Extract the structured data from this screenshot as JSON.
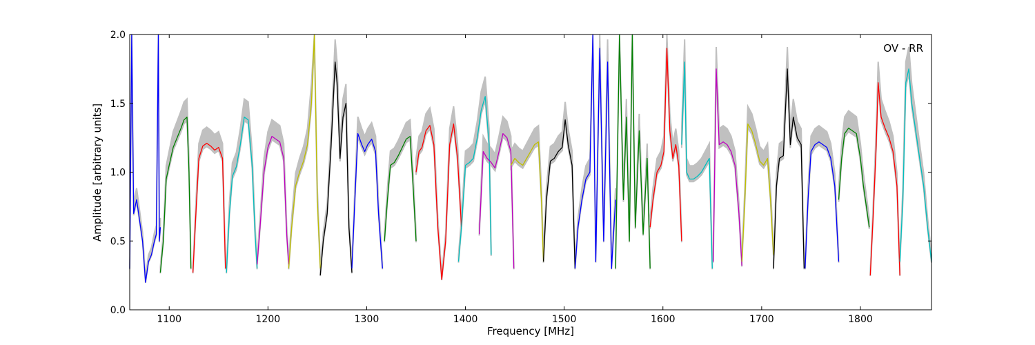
{
  "chart_data": {
    "type": "line",
    "title": "",
    "annotation": "OV - RR",
    "xlabel": "Frequency [MHz]",
    "ylabel": "Amplitude [arbitrary units]",
    "xlim": [
      1060,
      1872
    ],
    "ylim": [
      0.0,
      2.0
    ],
    "xticks": [
      1100,
      1200,
      1300,
      1400,
      1500,
      1600,
      1700,
      1800
    ],
    "yticks": [
      0.0,
      0.5,
      1.0,
      1.5,
      2.0
    ],
    "grid": false,
    "background_color": "#c0c0c0",
    "series": [
      {
        "color": "#0000ff",
        "x": [
          1060,
          1062,
          1064,
          1067,
          1070,
          1073,
          1076,
          1079,
          1082,
          1085,
          1087,
          1089,
          1090,
          1091
        ],
        "y": [
          0.3,
          2.0,
          0.7,
          0.8,
          0.65,
          0.5,
          0.2,
          0.35,
          0.4,
          0.5,
          0.55,
          2.0,
          0.5,
          0.6
        ]
      },
      {
        "color": "#008000",
        "x": [
          1091,
          1094,
          1097,
          1100,
          1104,
          1108,
          1112,
          1115,
          1118,
          1120,
          1122
        ],
        "y": [
          0.27,
          0.5,
          0.95,
          1.05,
          1.18,
          1.25,
          1.32,
          1.38,
          1.4,
          1.0,
          0.3
        ]
      },
      {
        "color": "#ff0000",
        "x": [
          1124,
          1127,
          1130,
          1134,
          1138,
          1142,
          1146,
          1150,
          1154,
          1157
        ],
        "y": [
          0.27,
          0.7,
          1.1,
          1.19,
          1.21,
          1.19,
          1.16,
          1.18,
          1.1,
          0.3
        ]
      },
      {
        "color": "#00bfbf",
        "x": [
          1158,
          1161,
          1164,
          1168,
          1172,
          1176,
          1180,
          1184,
          1187,
          1189
        ],
        "y": [
          0.27,
          0.7,
          0.97,
          1.04,
          1.2,
          1.4,
          1.38,
          1.05,
          0.55,
          0.3
        ]
      },
      {
        "color": "#bf00bf",
        "x": [
          1189,
          1192,
          1196,
          1200,
          1204,
          1208,
          1212,
          1216,
          1219,
          1221
        ],
        "y": [
          0.33,
          0.6,
          1.0,
          1.18,
          1.26,
          1.24,
          1.22,
          1.1,
          0.55,
          0.33
        ]
      },
      {
        "color": "#bfbf00",
        "x": [
          1221,
          1224,
          1228,
          1232,
          1236,
          1240,
          1244,
          1247,
          1250,
          1253
        ],
        "y": [
          0.3,
          0.6,
          0.9,
          1.0,
          1.08,
          1.2,
          1.5,
          2.0,
          0.8,
          0.3
        ]
      },
      {
        "color": "#000000",
        "x": [
          1253,
          1256,
          1260,
          1264,
          1268,
          1270,
          1273,
          1276,
          1279,
          1282,
          1285
        ],
        "y": [
          0.25,
          0.5,
          0.7,
          1.2,
          1.8,
          1.65,
          1.1,
          1.4,
          1.5,
          0.6,
          0.27
        ]
      },
      {
        "color": "#0000ff",
        "x": [
          1285,
          1288,
          1291,
          1295,
          1298,
          1301,
          1305,
          1309,
          1312,
          1316
        ],
        "y": [
          0.3,
          0.8,
          1.28,
          1.2,
          1.15,
          1.2,
          1.24,
          1.15,
          0.7,
          0.3
        ]
      },
      {
        "color": "#008000",
        "x": [
          1318,
          1321,
          1324,
          1328,
          1332,
          1336,
          1340,
          1344,
          1347,
          1350
        ],
        "y": [
          0.5,
          0.8,
          1.05,
          1.07,
          1.12,
          1.18,
          1.24,
          1.26,
          0.9,
          0.5
        ]
      },
      {
        "color": "#ff0000",
        "x": [
          1350,
          1353,
          1356,
          1360,
          1364,
          1368,
          1372,
          1376,
          1380,
          1384,
          1388,
          1392,
          1396
        ],
        "y": [
          1.0,
          1.15,
          1.18,
          1.3,
          1.34,
          1.2,
          0.6,
          0.22,
          0.5,
          1.2,
          1.35,
          1.1,
          0.6
        ]
      },
      {
        "color": "#00bfbf",
        "x": [
          1393,
          1396,
          1400,
          1404,
          1408,
          1412,
          1416,
          1420,
          1424,
          1426
        ],
        "y": [
          0.35,
          0.6,
          1.05,
          1.07,
          1.1,
          1.25,
          1.45,
          1.55,
          1.2,
          0.4
        ]
      },
      {
        "color": "#bf00bf",
        "x": [
          1414,
          1418,
          1422,
          1426,
          1430,
          1434,
          1438,
          1442,
          1446,
          1449
        ],
        "y": [
          0.55,
          1.15,
          1.1,
          1.07,
          1.03,
          1.15,
          1.28,
          1.25,
          1.15,
          0.3
        ]
      },
      {
        "color": "#bfbf00",
        "x": [
          1446,
          1450,
          1454,
          1458,
          1462,
          1466,
          1470,
          1474,
          1477,
          1479
        ],
        "y": [
          1.05,
          1.1,
          1.07,
          1.05,
          1.1,
          1.15,
          1.2,
          1.22,
          0.8,
          0.35
        ]
      },
      {
        "color": "#000000",
        "x": [
          1479,
          1482,
          1486,
          1490,
          1494,
          1498,
          1501,
          1504,
          1508,
          1511
        ],
        "y": [
          0.35,
          0.8,
          1.08,
          1.1,
          1.15,
          1.18,
          1.38,
          1.2,
          1.05,
          0.3
        ]
      },
      {
        "color": "#0000ff",
        "x": [
          1511,
          1514,
          1518,
          1522,
          1526,
          1529,
          1532,
          1536,
          1540,
          1544,
          1548,
          1552
        ],
        "y": [
          0.3,
          0.6,
          0.8,
          0.95,
          1.0,
          2.0,
          0.35,
          1.9,
          0.5,
          1.8,
          0.3,
          0.8
        ]
      },
      {
        "color": "#008000",
        "x": [
          1552,
          1556,
          1560,
          1563,
          1566,
          1569,
          1572,
          1576,
          1580,
          1584,
          1587
        ],
        "y": [
          0.3,
          2.0,
          0.8,
          1.4,
          0.5,
          2.0,
          0.6,
          1.3,
          0.55,
          1.1,
          0.3
        ]
      },
      {
        "color": "#ff0000",
        "x": [
          1587,
          1590,
          1594,
          1598,
          1601,
          1604,
          1607,
          1610,
          1613,
          1616,
          1619
        ],
        "y": [
          0.6,
          0.8,
          1.0,
          1.05,
          1.15,
          1.9,
          1.3,
          1.1,
          1.2,
          1.05,
          0.5
        ]
      },
      {
        "color": "#00bfbf",
        "x": [
          1619,
          1622,
          1624,
          1627,
          1631,
          1635,
          1639,
          1643,
          1647,
          1650
        ],
        "y": [
          1.2,
          1.8,
          1.0,
          0.95,
          0.95,
          0.97,
          1.0,
          1.05,
          1.1,
          0.3
        ]
      },
      {
        "color": "#bf00bf",
        "x": [
          1651,
          1654,
          1657,
          1661,
          1665,
          1669,
          1673,
          1677,
          1680
        ],
        "y": [
          0.35,
          1.75,
          1.2,
          1.22,
          1.2,
          1.15,
          1.05,
          0.7,
          0.32
        ]
      },
      {
        "color": "#bfbf00",
        "x": [
          1680,
          1683,
          1686,
          1690,
          1694,
          1698,
          1702,
          1706,
          1709,
          1712
        ],
        "y": [
          0.35,
          0.8,
          1.35,
          1.3,
          1.2,
          1.08,
          1.05,
          1.1,
          0.8,
          0.4
        ]
      },
      {
        "color": "#000000",
        "x": [
          1712,
          1715,
          1718,
          1722,
          1726,
          1729,
          1732,
          1736,
          1740,
          1743
        ],
        "y": [
          0.3,
          0.9,
          1.1,
          1.12,
          1.75,
          1.2,
          1.4,
          1.25,
          1.2,
          0.3
        ]
      },
      {
        "color": "#0000ff",
        "x": [
          1744,
          1747,
          1750,
          1754,
          1758,
          1762,
          1766,
          1770,
          1774,
          1778
        ],
        "y": [
          0.3,
          0.8,
          1.15,
          1.2,
          1.22,
          1.2,
          1.18,
          1.1,
          0.9,
          0.35
        ]
      },
      {
        "color": "#008000",
        "x": [
          1778,
          1781,
          1784,
          1788,
          1792,
          1796,
          1800,
          1803,
          1806,
          1809
        ],
        "y": [
          0.8,
          1.1,
          1.28,
          1.32,
          1.3,
          1.28,
          1.1,
          0.9,
          0.75,
          0.6
        ]
      },
      {
        "color": "#ff0000",
        "x": [
          1810,
          1813,
          1816,
          1818,
          1821,
          1825,
          1829,
          1833,
          1837,
          1840
        ],
        "y": [
          0.25,
          0.7,
          1.2,
          1.65,
          1.4,
          1.32,
          1.25,
          1.15,
          0.9,
          0.25
        ]
      },
      {
        "color": "#00bfbf",
        "x": [
          1840,
          1843,
          1846,
          1849,
          1852,
          1856,
          1860,
          1864,
          1868,
          1872
        ],
        "y": [
          0.35,
          0.8,
          1.65,
          1.75,
          1.5,
          1.3,
          1.1,
          0.9,
          0.6,
          0.35
        ]
      }
    ]
  }
}
